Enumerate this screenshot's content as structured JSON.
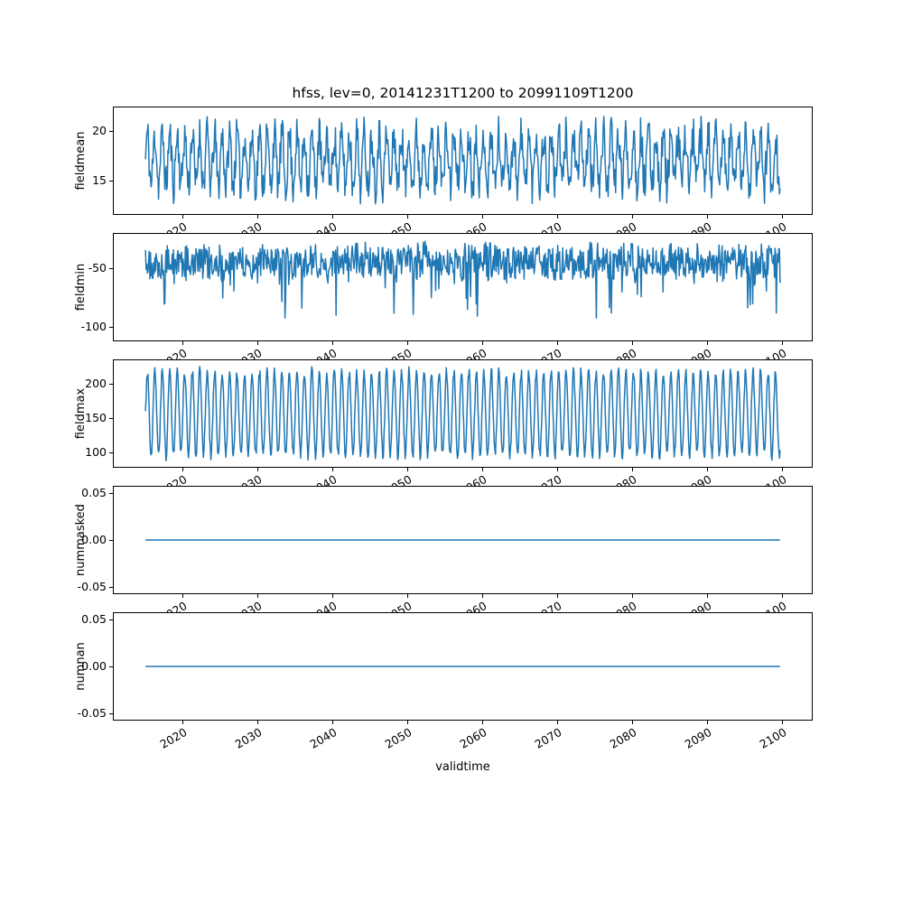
{
  "chart_data": {
    "type": "line",
    "title": "hfss, lev=0, 20141231T1200 to 20991109T1200",
    "xlabel": "validtime",
    "line_color": "#1f77b4",
    "x_range": [
      2015.0,
      2099.86
    ],
    "xticks": [
      2020,
      2030,
      2040,
      2050,
      2060,
      2070,
      2080,
      2090,
      2100
    ],
    "xtick_labels": [
      "2020",
      "2030",
      "2040",
      "2050",
      "2060",
      "2070",
      "2080",
      "2090",
      "2100"
    ],
    "n_points": 1020,
    "panels": [
      {
        "ylabel": "fieldmean",
        "ylim": [
          11.5,
          22.5
        ],
        "yticks": [
          15,
          20
        ],
        "ytick_labels": [
          "15",
          "20"
        ],
        "series": {
          "kind": "seasonal-noise",
          "base": 17.1,
          "amp": 2.6,
          "noise": 2.0,
          "seed": 11
        }
      },
      {
        "ylabel": "fieldmin",
        "ylim": [
          -112,
          -20
        ],
        "yticks": [
          -100,
          -50
        ],
        "ytick_labels": [
          "-100",
          "-50"
        ],
        "series": {
          "kind": "spiky-noise",
          "base": -30,
          "range": 30,
          "noise": 4,
          "spike": 42,
          "spike_prob": 0.05,
          "seed": 7
        }
      },
      {
        "ylabel": "fieldmax",
        "ylim": [
          78,
          236
        ],
        "yticks": [
          100,
          150,
          200
        ],
        "ytick_labels": [
          "100",
          "150",
          "200"
        ],
        "series": {
          "kind": "seasonal-noise",
          "base": 157,
          "amp": 62,
          "noise": 8,
          "seed": 3
        }
      },
      {
        "ylabel": "nummasked",
        "ylim": [
          -0.0575,
          0.0575
        ],
        "yticks": [
          -0.05,
          0,
          0.05
        ],
        "ytick_labels": [
          "-0.05",
          "0.00",
          "0.05"
        ],
        "series": {
          "kind": "constant",
          "value": 0
        }
      },
      {
        "ylabel": "numnan",
        "ylim": [
          -0.0575,
          0.0575
        ],
        "yticks": [
          -0.05,
          0,
          0.05
        ],
        "ytick_labels": [
          "-0.05",
          "0.00",
          "0.05"
        ],
        "series": {
          "kind": "constant",
          "value": 0
        }
      }
    ]
  }
}
